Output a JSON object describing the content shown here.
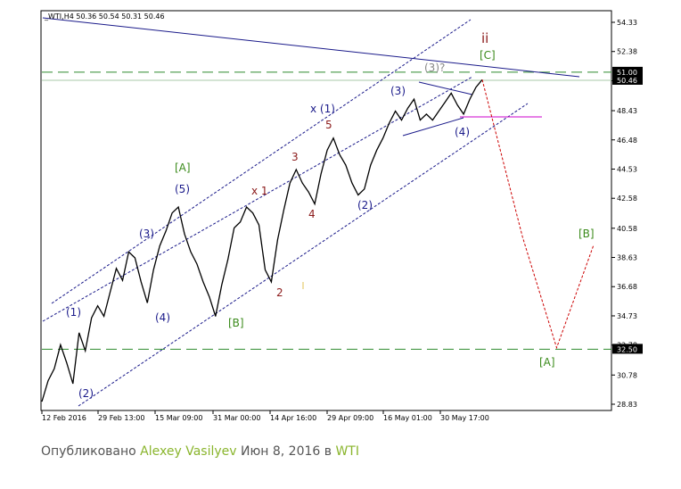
{
  "chart_data": {
    "type": "line",
    "header": "_WTI,H4  50.36 50.54 50.31 50.46",
    "y_ticks": [
      "54.33",
      "52.38",
      "50.43",
      "48.43",
      "46.48",
      "44.53",
      "42.58",
      "40.58",
      "38.63",
      "36.68",
      "34.73",
      "32.78",
      "30.78",
      "28.83"
    ],
    "x_ticks": [
      "12 Feb 2016",
      "29 Feb 13:00",
      "15 Mar 09:00",
      "31 Mar 00:00",
      "14 Apr 16:00",
      "29 Apr 09:00",
      "16 May 01:00",
      "30 May 17:00"
    ],
    "ylim": [
      28.5,
      55.0
    ],
    "price_tags": [
      {
        "label": "51.00",
        "value": 51.0,
        "kind": "level"
      },
      {
        "label": "50.46",
        "value": 50.46,
        "kind": "current"
      },
      {
        "label": "32.50",
        "value": 32.5,
        "kind": "level"
      }
    ],
    "price_path": [
      [
        0,
        29.0
      ],
      [
        2,
        30.4
      ],
      [
        4,
        31.2
      ],
      [
        6,
        32.8
      ],
      [
        8,
        31.6
      ],
      [
        10,
        30.2
      ],
      [
        12,
        33.6
      ],
      [
        14,
        32.4
      ],
      [
        16,
        34.6
      ],
      [
        18,
        35.4
      ],
      [
        20,
        34.7
      ],
      [
        22,
        36.3
      ],
      [
        24,
        37.9
      ],
      [
        26,
        37.1
      ],
      [
        28,
        39.0
      ],
      [
        30,
        38.6
      ],
      [
        32,
        37.0
      ],
      [
        34,
        35.6
      ],
      [
        36,
        37.8
      ],
      [
        38,
        39.4
      ],
      [
        40,
        40.4
      ],
      [
        42,
        41.6
      ],
      [
        44,
        42.0
      ],
      [
        46,
        40.2
      ],
      [
        48,
        39.0
      ],
      [
        50,
        38.2
      ],
      [
        52,
        37.0
      ],
      [
        54,
        36.0
      ],
      [
        56,
        34.7
      ],
      [
        58,
        36.8
      ],
      [
        60,
        38.5
      ],
      [
        62,
        40.6
      ],
      [
        64,
        41.0
      ],
      [
        66,
        42.0
      ],
      [
        68,
        41.6
      ],
      [
        70,
        40.8
      ],
      [
        72,
        37.8
      ],
      [
        74,
        37.0
      ],
      [
        76,
        39.8
      ],
      [
        78,
        41.8
      ],
      [
        80,
        43.6
      ],
      [
        82,
        44.5
      ],
      [
        84,
        43.6
      ],
      [
        86,
        43.0
      ],
      [
        88,
        42.2
      ],
      [
        90,
        44.2
      ],
      [
        92,
        45.8
      ],
      [
        94,
        46.6
      ],
      [
        96,
        45.5
      ],
      [
        98,
        44.8
      ],
      [
        100,
        43.6
      ],
      [
        102,
        42.8
      ],
      [
        104,
        43.2
      ],
      [
        106,
        44.8
      ],
      [
        108,
        45.8
      ],
      [
        110,
        46.6
      ],
      [
        112,
        47.6
      ],
      [
        114,
        48.4
      ],
      [
        116,
        47.8
      ],
      [
        118,
        48.6
      ],
      [
        120,
        49.2
      ],
      [
        122,
        47.8
      ],
      [
        124,
        48.2
      ],
      [
        126,
        47.8
      ],
      [
        128,
        48.4
      ],
      [
        130,
        49.0
      ],
      [
        132,
        49.6
      ],
      [
        134,
        48.8
      ],
      [
        136,
        48.2
      ],
      [
        138,
        49.2
      ],
      [
        140,
        50.0
      ],
      [
        142,
        50.5
      ]
    ],
    "forecast_path": [
      [
        142,
        50.5
      ],
      [
        155,
        40.0
      ],
      [
        166,
        32.6
      ],
      [
        178,
        39.5
      ]
    ],
    "levels": [
      51.0,
      50.46,
      32.5
    ],
    "wave_labels": [
      {
        "text": "ii",
        "color": "#8b1a1a"
      },
      {
        "text": "[C]",
        "color": "#3a8a1a"
      },
      {
        "text": "(3)?",
        "color": "#888888"
      },
      {
        "text": "(3)",
        "color": "#1a1a8a"
      },
      {
        "text": "x (1)",
        "color": "#1a1a8a"
      },
      {
        "text": "5",
        "color": "#8b1a1a"
      },
      {
        "text": "(4)",
        "color": "#1a1a8a"
      },
      {
        "text": "3",
        "color": "#8b1a1a"
      },
      {
        "text": "[A]",
        "color": "#3a8a1a"
      },
      {
        "text": "(5)",
        "color": "#1a1a8a"
      },
      {
        "text": "x 1",
        "color": "#8b1a1a"
      },
      {
        "text": "4",
        "color": "#8b1a1a"
      },
      {
        "text": "(2)",
        "color": "#1a1a8a"
      },
      {
        "text": "(3)",
        "color": "#1a1a8a"
      },
      {
        "text": "[B]",
        "color": "#3a8a1a"
      },
      {
        "text": "2",
        "color": "#8b1a1a"
      },
      {
        "text": "(4)",
        "color": "#1a1a8a"
      },
      {
        "text": "(1)",
        "color": "#1a1a8a"
      },
      {
        "text": "[B]",
        "color": "#3a8a1a"
      },
      {
        "text": "[A]",
        "color": "#3a8a1a"
      },
      {
        "text": "(2)",
        "color": "#1a1a8a"
      }
    ],
    "colors": {
      "grid_level": "#2e8b2e",
      "price": "#000000",
      "forecast": "#cc0000",
      "channel": "#1a1a8a",
      "tag_bg": "#000000"
    }
  },
  "footer": {
    "prefix": "Опубликовано ",
    "author": "Alexey Vasilyev",
    "middle": " Июн 8, 2016 в ",
    "symbol": "WTI"
  }
}
